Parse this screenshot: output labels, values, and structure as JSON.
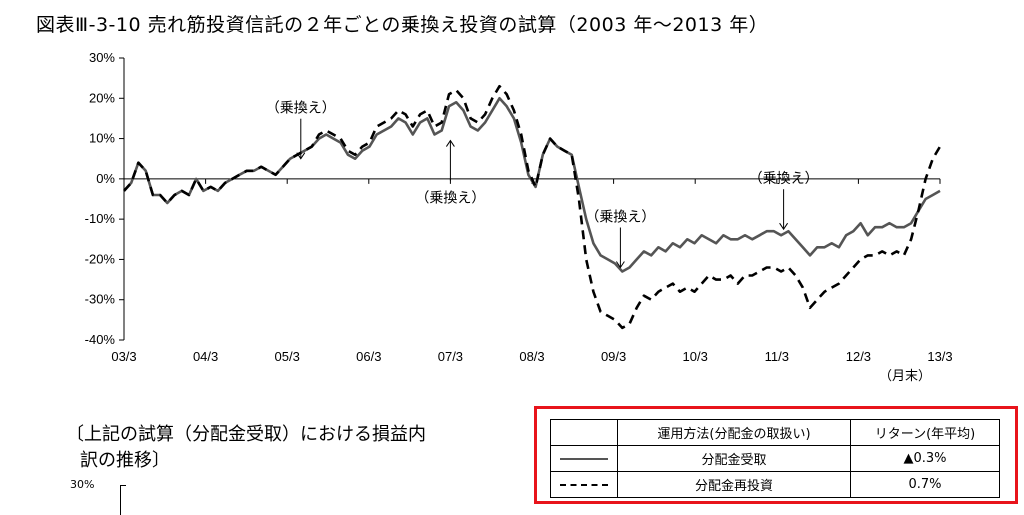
{
  "title": "図表Ⅲ-3-10 売れ筋投資信託の２年ごとの乗換え投資の試算（2003 年～2013 年）",
  "chart_data": {
    "type": "line",
    "x_tick_labels": [
      "03/3",
      "04/3",
      "05/3",
      "06/3",
      "07/3",
      "08/3",
      "09/3",
      "10/3",
      "11/3",
      "12/3",
      "13/3"
    ],
    "x_unit_label": "（月末）",
    "y_tick_labels": [
      "30%",
      "20%",
      "10%",
      "0%",
      "-10%",
      "-20%",
      "-30%",
      "-40%"
    ],
    "ylim": [
      -40,
      30
    ],
    "series": [
      {
        "name": "分配金受取",
        "style": "solid",
        "color": "#555555",
        "values": [
          -3,
          -1,
          4,
          2,
          -4,
          -4,
          -6,
          -4,
          -3,
          -4,
          0,
          -3,
          -2,
          -3,
          -1,
          0,
          1,
          2,
          2,
          3,
          2,
          1,
          3,
          5,
          6,
          7,
          8,
          10,
          11,
          10,
          9,
          6,
          5,
          7,
          8,
          11,
          12,
          13,
          15,
          14,
          11,
          14,
          15,
          11,
          12,
          18,
          19,
          17,
          13,
          12,
          14,
          17,
          20,
          18,
          15,
          9,
          1,
          -2,
          6,
          10,
          8,
          7,
          6,
          -2,
          -10,
          -16,
          -19,
          -20,
          -21,
          -23,
          -22,
          -20,
          -18,
          -19,
          -17,
          -18,
          -16,
          -17,
          -15,
          -16,
          -14,
          -15,
          -16,
          -14,
          -15,
          -15,
          -14,
          -15,
          -14,
          -13,
          -13,
          -14,
          -13,
          -15,
          -17,
          -19,
          -17,
          -17,
          -16,
          -17,
          -14,
          -13,
          -11,
          -14,
          -12,
          -12,
          -11,
          -12,
          -12,
          -11,
          -8,
          -5,
          -4,
          -3
        ]
      },
      {
        "name": "分配金再投資",
        "style": "dashed",
        "color": "#000000",
        "values": [
          -3,
          -1,
          4,
          2,
          -4,
          -4,
          -6,
          -4,
          -3,
          -4,
          0,
          -3,
          -2,
          -3,
          -1,
          0,
          1,
          2,
          2,
          3,
          2,
          1,
          3,
          5,
          6,
          7,
          8,
          11,
          12,
          11,
          10,
          7,
          6,
          8,
          9,
          13,
          14,
          15,
          17,
          16,
          13,
          16,
          17,
          13,
          14,
          21,
          22,
          20,
          15,
          14,
          16,
          20,
          23,
          21,
          17,
          11,
          2,
          -2,
          6,
          10,
          8,
          7,
          6,
          -5,
          -20,
          -28,
          -33,
          -34,
          -35,
          -37,
          -36,
          -32,
          -29,
          -30,
          -28,
          -27,
          -26,
          -28,
          -27,
          -28,
          -26,
          -24,
          -25,
          -25,
          -24,
          -26,
          -24,
          -24,
          -23,
          -22,
          -22,
          -23,
          -22,
          -24,
          -27,
          -32,
          -30,
          -28,
          -27,
          -26,
          -24,
          -22,
          -20,
          -19,
          -19,
          -18,
          -19,
          -18,
          -19,
          -15,
          -8,
          0,
          5,
          8
        ]
      }
    ],
    "annotations": [
      {
        "text": "（乗換え）",
        "at_month": 26,
        "value": 5,
        "direction": "down",
        "label_side": "above"
      },
      {
        "text": "（乗換え）",
        "at_month": 48,
        "value": 9.5,
        "direction": "up",
        "label_side": "below"
      },
      {
        "text": "（乗換え）",
        "at_month": 73,
        "value": -22,
        "direction": "down",
        "label_side": "above"
      },
      {
        "text": "（乗換え）",
        "at_month": 97,
        "value": -12.5,
        "direction": "down",
        "label_side": "above"
      }
    ],
    "grid": false,
    "zero_line": true
  },
  "subtitle": {
    "line1": "〔上記の試算（分配金受取）における損益内",
    "line2": "訳の推移〕",
    "ytick_top": "30%"
  },
  "legend_table": {
    "headers": [
      "",
      "運用方法(分配金の取扱い)",
      "リターン(年平均)"
    ],
    "rows": [
      {
        "line_style": "solid",
        "method": "分配金受取",
        "return": "▲0.3%"
      },
      {
        "line_style": "dashed",
        "method": "分配金再投資",
        "return": "0.7%"
      }
    ]
  },
  "colors": {
    "highlight_border": "#e8141b"
  }
}
